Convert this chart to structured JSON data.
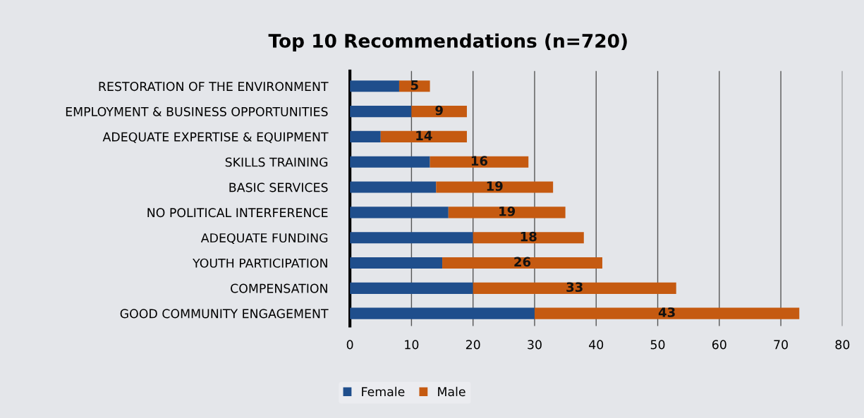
{
  "chart_data": {
    "type": "bar",
    "orientation": "horizontal",
    "stacked": true,
    "title": "Top 10 Recommendations (n=720)",
    "categories": [
      "RESTORATION OF THE ENVIRONMENT",
      "EMPLOYMENT & BUSINESS OPPORTUNITIES",
      "ADEQUATE EXPERTISE & EQUIPMENT",
      "SKILLS TRAINING",
      "BASIC SERVICES",
      "NO POLITICAL INTERFERENCE",
      "ADEQUATE FUNDING",
      "YOUTH PARTICIPATION",
      "COMPENSATION",
      "GOOD COMMUNITY ENGAGEMENT"
    ],
    "series": [
      {
        "name": "Female",
        "color": "#1f4e8c",
        "values": [
          8,
          10,
          5,
          13,
          14,
          16,
          20,
          15,
          20,
          30
        ]
      },
      {
        "name": "Male",
        "color": "#c55a11",
        "values": [
          5,
          9,
          14,
          16,
          19,
          19,
          18,
          26,
          33,
          43
        ],
        "value_labels": [
          "5",
          "9",
          "14",
          "16",
          "19",
          "19",
          "18",
          "26",
          "33",
          "43"
        ]
      }
    ],
    "xlim": [
      0,
      80
    ],
    "xticks": [
      0,
      10,
      20,
      30,
      40,
      50,
      60,
      70,
      80
    ],
    "grid": "x",
    "legend": "bottom"
  }
}
